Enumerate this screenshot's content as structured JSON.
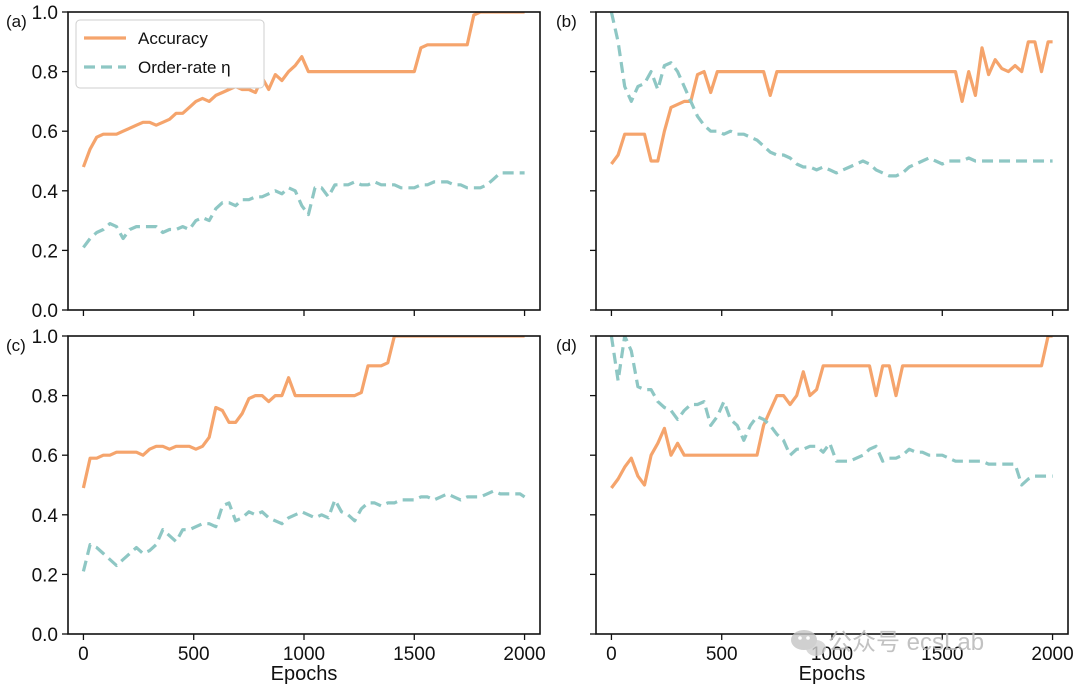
{
  "figure": {
    "watermark_text": "公众号 ecsLab",
    "watermark_icon": "wechat-icon"
  },
  "chart_data": [
    {
      "panel": "(a)",
      "type": "line",
      "xlabel": "",
      "ylabel": "",
      "xlim": [
        -70,
        2070
      ],
      "ylim": [
        0.0,
        1.0
      ],
      "xticks": [
        "0",
        "500",
        "1000",
        "1500",
        "2000"
      ],
      "yticks": [
        "0.0",
        "0.2",
        "0.4",
        "0.6",
        "0.8",
        "1.0"
      ],
      "grid": false,
      "legend": "upper-left",
      "x": [
        0,
        30,
        60,
        90,
        120,
        150,
        180,
        210,
        240,
        270,
        300,
        330,
        360,
        390,
        420,
        450,
        480,
        510,
        540,
        570,
        600,
        630,
        660,
        690,
        720,
        750,
        780,
        810,
        840,
        870,
        900,
        930,
        960,
        990,
        1020,
        1050,
        1080,
        1110,
        1140,
        1170,
        1200,
        1230,
        1260,
        1290,
        1320,
        1350,
        1380,
        1410,
        1440,
        1470,
        1500,
        1530,
        1560,
        1590,
        1620,
        1650,
        1680,
        1710,
        1740,
        1770,
        1800,
        1830,
        1860,
        1890,
        1920,
        1950,
        1980,
        2000
      ],
      "series": [
        {
          "name": "Accuracy",
          "color": "#f5a46c",
          "dash": "solid",
          "values": [
            0.48,
            0.54,
            0.58,
            0.59,
            0.59,
            0.59,
            0.6,
            0.61,
            0.62,
            0.63,
            0.63,
            0.62,
            0.63,
            0.64,
            0.66,
            0.66,
            0.68,
            0.7,
            0.71,
            0.7,
            0.72,
            0.73,
            0.74,
            0.75,
            0.74,
            0.74,
            0.73,
            0.78,
            0.74,
            0.79,
            0.77,
            0.8,
            0.82,
            0.85,
            0.8,
            0.8,
            0.8,
            0.8,
            0.8,
            0.8,
            0.8,
            0.8,
            0.8,
            0.8,
            0.8,
            0.8,
            0.8,
            0.8,
            0.8,
            0.8,
            0.8,
            0.88,
            0.89,
            0.89,
            0.89,
            0.89,
            0.89,
            0.89,
            0.89,
            0.99,
            1.0,
            1.0,
            1.0,
            1.0,
            1.0,
            1.0,
            1.0,
            1.0
          ]
        },
        {
          "name": "Order-rate η",
          "color": "#8ec7c4",
          "dash": "dashed",
          "values": [
            0.21,
            0.24,
            0.26,
            0.27,
            0.29,
            0.28,
            0.24,
            0.27,
            0.28,
            0.28,
            0.28,
            0.28,
            0.26,
            0.27,
            0.27,
            0.28,
            0.27,
            0.3,
            0.31,
            0.3,
            0.34,
            0.36,
            0.36,
            0.35,
            0.37,
            0.37,
            0.38,
            0.38,
            0.39,
            0.4,
            0.39,
            0.41,
            0.4,
            0.35,
            0.32,
            0.41,
            0.41,
            0.38,
            0.42,
            0.42,
            0.42,
            0.43,
            0.42,
            0.42,
            0.43,
            0.42,
            0.42,
            0.42,
            0.41,
            0.41,
            0.41,
            0.42,
            0.42,
            0.43,
            0.43,
            0.43,
            0.42,
            0.42,
            0.41,
            0.41,
            0.41,
            0.42,
            0.44,
            0.46,
            0.46,
            0.46,
            0.46,
            0.46
          ]
        }
      ]
    },
    {
      "panel": "(b)",
      "type": "line",
      "xlabel": "",
      "ylabel": "",
      "xlim": [
        -70,
        2070
      ],
      "ylim": [
        0.0,
        1.0
      ],
      "xticks": [
        "0",
        "500",
        "1000",
        "1500",
        "2000"
      ],
      "yticks": [],
      "grid": false,
      "x": [
        0,
        30,
        60,
        90,
        120,
        150,
        180,
        210,
        240,
        270,
        300,
        330,
        360,
        390,
        420,
        450,
        480,
        510,
        540,
        570,
        600,
        630,
        660,
        690,
        720,
        750,
        780,
        810,
        840,
        870,
        900,
        930,
        960,
        990,
        1020,
        1050,
        1080,
        1110,
        1140,
        1170,
        1200,
        1230,
        1260,
        1290,
        1320,
        1350,
        1380,
        1410,
        1440,
        1470,
        1500,
        1530,
        1560,
        1590,
        1620,
        1650,
        1680,
        1710,
        1740,
        1770,
        1800,
        1830,
        1860,
        1890,
        1920,
        1950,
        1980,
        2000
      ],
      "series": [
        {
          "name": "Accuracy",
          "color": "#f5a46c",
          "dash": "solid",
          "values": [
            0.49,
            0.52,
            0.59,
            0.59,
            0.59,
            0.59,
            0.5,
            0.5,
            0.6,
            0.68,
            0.69,
            0.7,
            0.7,
            0.79,
            0.8,
            0.73,
            0.8,
            0.8,
            0.8,
            0.8,
            0.8,
            0.8,
            0.8,
            0.8,
            0.72,
            0.8,
            0.8,
            0.8,
            0.8,
            0.8,
            0.8,
            0.8,
            0.8,
            0.8,
            0.8,
            0.8,
            0.8,
            0.8,
            0.8,
            0.8,
            0.8,
            0.8,
            0.8,
            0.8,
            0.8,
            0.8,
            0.8,
            0.8,
            0.8,
            0.8,
            0.8,
            0.8,
            0.8,
            0.7,
            0.8,
            0.72,
            0.88,
            0.79,
            0.84,
            0.81,
            0.8,
            0.82,
            0.8,
            0.9,
            0.9,
            0.8,
            0.9,
            0.9
          ]
        },
        {
          "name": "Order-rate η",
          "color": "#8ec7c4",
          "dash": "dashed",
          "values": [
            1.0,
            0.9,
            0.75,
            0.7,
            0.75,
            0.76,
            0.8,
            0.74,
            0.82,
            0.83,
            0.8,
            0.75,
            0.7,
            0.65,
            0.62,
            0.6,
            0.6,
            0.59,
            0.6,
            0.59,
            0.59,
            0.58,
            0.57,
            0.55,
            0.53,
            0.52,
            0.52,
            0.51,
            0.49,
            0.48,
            0.48,
            0.47,
            0.48,
            0.47,
            0.46,
            0.47,
            0.48,
            0.49,
            0.5,
            0.49,
            0.47,
            0.46,
            0.45,
            0.45,
            0.46,
            0.48,
            0.49,
            0.5,
            0.51,
            0.5,
            0.49,
            0.5,
            0.5,
            0.5,
            0.51,
            0.5,
            0.5,
            0.5,
            0.5,
            0.5,
            0.5,
            0.5,
            0.5,
            0.5,
            0.5,
            0.5,
            0.5,
            0.5
          ]
        }
      ]
    },
    {
      "panel": "(c)",
      "type": "line",
      "xlabel": "Epochs",
      "ylabel": "",
      "xlim": [
        -70,
        2070
      ],
      "ylim": [
        0.0,
        1.0
      ],
      "xticks": [
        "0",
        "500",
        "1000",
        "1500",
        "2000"
      ],
      "yticks": [
        "0.0",
        "0.2",
        "0.4",
        "0.6",
        "0.8",
        "1.0"
      ],
      "grid": false,
      "x": [
        0,
        30,
        60,
        90,
        120,
        150,
        180,
        210,
        240,
        270,
        300,
        330,
        360,
        390,
        420,
        450,
        480,
        510,
        540,
        570,
        600,
        630,
        660,
        690,
        720,
        750,
        780,
        810,
        840,
        870,
        900,
        930,
        960,
        990,
        1020,
        1050,
        1080,
        1110,
        1140,
        1170,
        1200,
        1230,
        1260,
        1290,
        1320,
        1350,
        1380,
        1410,
        1440,
        1470,
        1500,
        1530,
        1560,
        1590,
        1620,
        1650,
        1680,
        1710,
        1740,
        1770,
        1800,
        1830,
        1860,
        1890,
        1920,
        1950,
        1980,
        2000
      ],
      "series": [
        {
          "name": "Accuracy",
          "color": "#f5a46c",
          "dash": "solid",
          "values": [
            0.49,
            0.59,
            0.59,
            0.6,
            0.6,
            0.61,
            0.61,
            0.61,
            0.61,
            0.6,
            0.62,
            0.63,
            0.63,
            0.62,
            0.63,
            0.63,
            0.63,
            0.62,
            0.63,
            0.66,
            0.76,
            0.75,
            0.71,
            0.71,
            0.74,
            0.79,
            0.8,
            0.8,
            0.78,
            0.8,
            0.8,
            0.86,
            0.8,
            0.8,
            0.8,
            0.8,
            0.8,
            0.8,
            0.8,
            0.8,
            0.8,
            0.8,
            0.81,
            0.9,
            0.9,
            0.9,
            0.91,
            1.0,
            1.0,
            1.0,
            1.0,
            1.0,
            1.0,
            1.0,
            1.0,
            1.0,
            1.0,
            1.0,
            1.0,
            1.0,
            1.0,
            1.0,
            1.0,
            1.0,
            1.0,
            1.0,
            1.0,
            1.0
          ]
        },
        {
          "name": "Order-rate η",
          "color": "#8ec7c4",
          "dash": "dashed",
          "values": [
            0.21,
            0.3,
            0.29,
            0.27,
            0.25,
            0.23,
            0.25,
            0.27,
            0.29,
            0.27,
            0.28,
            0.3,
            0.35,
            0.33,
            0.31,
            0.35,
            0.35,
            0.36,
            0.37,
            0.37,
            0.36,
            0.43,
            0.44,
            0.38,
            0.39,
            0.41,
            0.4,
            0.41,
            0.39,
            0.38,
            0.37,
            0.39,
            0.4,
            0.41,
            0.4,
            0.39,
            0.4,
            0.39,
            0.45,
            0.41,
            0.4,
            0.38,
            0.42,
            0.44,
            0.44,
            0.43,
            0.44,
            0.44,
            0.45,
            0.45,
            0.45,
            0.46,
            0.46,
            0.45,
            0.46,
            0.47,
            0.46,
            0.45,
            0.46,
            0.46,
            0.46,
            0.47,
            0.48,
            0.47,
            0.47,
            0.47,
            0.47,
            0.46
          ]
        }
      ]
    },
    {
      "panel": "(d)",
      "type": "line",
      "xlabel": "Epochs",
      "ylabel": "",
      "xlim": [
        -70,
        2070
      ],
      "ylim": [
        0.0,
        1.0
      ],
      "xticks": [
        "0",
        "500",
        "1000",
        "1500",
        "2000"
      ],
      "yticks": [],
      "grid": false,
      "x": [
        0,
        30,
        60,
        90,
        120,
        150,
        180,
        210,
        240,
        270,
        300,
        330,
        360,
        390,
        420,
        450,
        480,
        510,
        540,
        570,
        600,
        630,
        660,
        690,
        720,
        750,
        780,
        810,
        840,
        870,
        900,
        930,
        960,
        990,
        1020,
        1050,
        1080,
        1110,
        1140,
        1170,
        1200,
        1230,
        1260,
        1290,
        1320,
        1350,
        1380,
        1410,
        1440,
        1470,
        1500,
        1530,
        1560,
        1590,
        1620,
        1650,
        1680,
        1710,
        1740,
        1770,
        1800,
        1830,
        1860,
        1890,
        1920,
        1950,
        1980,
        2000
      ],
      "series": [
        {
          "name": "Accuracy",
          "color": "#f5a46c",
          "dash": "solid",
          "values": [
            0.49,
            0.52,
            0.56,
            0.59,
            0.53,
            0.5,
            0.6,
            0.64,
            0.69,
            0.6,
            0.64,
            0.6,
            0.6,
            0.6,
            0.6,
            0.6,
            0.6,
            0.6,
            0.6,
            0.6,
            0.6,
            0.6,
            0.6,
            0.7,
            0.75,
            0.8,
            0.8,
            0.77,
            0.8,
            0.88,
            0.8,
            0.82,
            0.9,
            0.9,
            0.9,
            0.9,
            0.9,
            0.9,
            0.9,
            0.9,
            0.8,
            0.9,
            0.9,
            0.8,
            0.9,
            0.9,
            0.9,
            0.9,
            0.9,
            0.9,
            0.9,
            0.9,
            0.9,
            0.9,
            0.9,
            0.9,
            0.9,
            0.9,
            0.9,
            0.9,
            0.9,
            0.9,
            0.9,
            0.9,
            0.9,
            0.9,
            1.0,
            1.0
          ]
        },
        {
          "name": "Order-rate η",
          "color": "#8ec7c4",
          "dash": "dashed",
          "values": [
            1.0,
            0.85,
            1.0,
            0.95,
            0.83,
            0.82,
            0.82,
            0.78,
            0.76,
            0.75,
            0.72,
            0.75,
            0.77,
            0.77,
            0.78,
            0.7,
            0.73,
            0.78,
            0.72,
            0.7,
            0.65,
            0.7,
            0.73,
            0.72,
            0.7,
            0.67,
            0.65,
            0.6,
            0.62,
            0.62,
            0.63,
            0.63,
            0.61,
            0.64,
            0.58,
            0.58,
            0.58,
            0.59,
            0.6,
            0.62,
            0.63,
            0.58,
            0.59,
            0.59,
            0.6,
            0.62,
            0.61,
            0.61,
            0.6,
            0.6,
            0.6,
            0.59,
            0.58,
            0.58,
            0.58,
            0.58,
            0.58,
            0.57,
            0.57,
            0.57,
            0.57,
            0.57,
            0.5,
            0.52,
            0.53,
            0.53,
            0.53,
            0.53
          ]
        }
      ]
    }
  ]
}
